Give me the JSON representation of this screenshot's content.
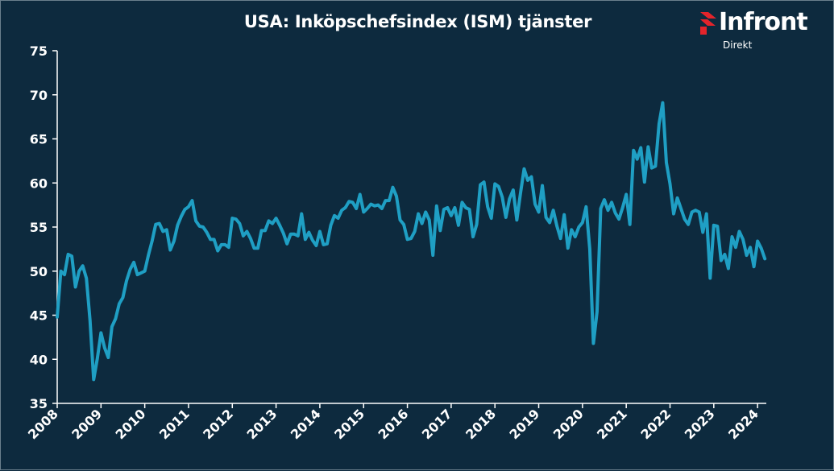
{
  "title": "USA: Inköpschefsindex (ISM) tjänster",
  "logo": {
    "word": "Infront",
    "sub": "Direkt"
  },
  "colors": {
    "background": "#0d2a3e",
    "line": "#1f9fc4",
    "axis": "#ffffff",
    "logo_accent": "#e3242b"
  },
  "chart_data": {
    "type": "line",
    "title": "USA: Inköpschefsindex (ISM) tjänster",
    "xlabel": "",
    "ylabel": "",
    "ylim": [
      35,
      75
    ],
    "yticks": [
      35,
      40,
      45,
      50,
      55,
      60,
      65,
      70,
      75
    ],
    "xlim": [
      2008.0,
      2024.2
    ],
    "xticks": [
      "2008",
      "2009",
      "2010",
      "2011",
      "2012",
      "2013",
      "2014",
      "2015",
      "2016",
      "2017",
      "2018",
      "2019",
      "2020",
      "2021",
      "2022",
      "2023",
      "2024"
    ],
    "grid": false,
    "legend": "none",
    "series": [
      {
        "x": [
          2008.0,
          2008.083,
          2008.167,
          2008.25,
          2008.333,
          2008.417,
          2008.5,
          2008.583,
          2008.667,
          2008.75,
          2008.833,
          2008.917,
          2009.0,
          2009.083,
          2009.167,
          2009.25,
          2009.333,
          2009.417,
          2009.5,
          2009.583,
          2009.667,
          2009.75,
          2009.833,
          2009.917,
          2010.0,
          2010.083,
          2010.167,
          2010.25,
          2010.333,
          2010.417,
          2010.5,
          2010.583,
          2010.667,
          2010.75,
          2010.833,
          2010.917,
          2011.0,
          2011.083,
          2011.167,
          2011.25,
          2011.333,
          2011.417,
          2011.5,
          2011.583,
          2011.667,
          2011.75,
          2011.833,
          2011.917,
          2012.0,
          2012.083,
          2012.167,
          2012.25,
          2012.333,
          2012.417,
          2012.5,
          2012.583,
          2012.667,
          2012.75,
          2012.833,
          2012.917,
          2013.0,
          2013.083,
          2013.167,
          2013.25,
          2013.333,
          2013.417,
          2013.5,
          2013.583,
          2013.667,
          2013.75,
          2013.833,
          2013.917,
          2014.0,
          2014.083,
          2014.167,
          2014.25,
          2014.333,
          2014.417,
          2014.5,
          2014.583,
          2014.667,
          2014.75,
          2014.833,
          2014.917,
          2015.0,
          2015.083,
          2015.167,
          2015.25,
          2015.333,
          2015.417,
          2015.5,
          2015.583,
          2015.667,
          2015.75,
          2015.833,
          2015.917,
          2016.0,
          2016.083,
          2016.167,
          2016.25,
          2016.333,
          2016.417,
          2016.5,
          2016.583,
          2016.667,
          2016.75,
          2016.833,
          2016.917,
          2017.0,
          2017.083,
          2017.167,
          2017.25,
          2017.333,
          2017.417,
          2017.5,
          2017.583,
          2017.667,
          2017.75,
          2017.833,
          2017.917,
          2018.0,
          2018.083,
          2018.167,
          2018.25,
          2018.333,
          2018.417,
          2018.5,
          2018.583,
          2018.667,
          2018.75,
          2018.833,
          2018.917,
          2019.0,
          2019.083,
          2019.167,
          2019.25,
          2019.333,
          2019.417,
          2019.5,
          2019.583,
          2019.667,
          2019.75,
          2019.833,
          2019.917,
          2020.0,
          2020.083,
          2020.167,
          2020.25,
          2020.333,
          2020.417,
          2020.5,
          2020.583,
          2020.667,
          2020.75,
          2020.833,
          2020.917,
          2021.0,
          2021.083,
          2021.167,
          2021.25,
          2021.333,
          2021.417,
          2021.5,
          2021.583,
          2021.667,
          2021.75,
          2021.833,
          2021.917,
          2022.0,
          2022.083,
          2022.167,
          2022.25,
          2022.333,
          2022.417,
          2022.5,
          2022.583,
          2022.667,
          2022.75,
          2022.833,
          2022.917,
          2023.0,
          2023.083,
          2023.167,
          2023.25,
          2023.333,
          2023.417,
          2023.5,
          2023.583,
          2023.667,
          2023.75,
          2023.833,
          2023.917,
          2024.0,
          2024.083,
          2024.167
        ],
        "values": [
          44.8,
          50.0,
          49.6,
          51.9,
          51.7,
          48.2,
          50.0,
          50.6,
          49.2,
          44.4,
          37.7,
          40.1,
          43.0,
          41.3,
          40.2,
          43.7,
          44.6,
          46.3,
          47.0,
          48.9,
          50.2,
          51.0,
          49.6,
          49.8,
          50.0,
          51.8,
          53.4,
          55.3,
          55.4,
          54.5,
          54.7,
          52.4,
          53.4,
          55.2,
          56.2,
          57.0,
          57.3,
          58.0,
          55.7,
          55.1,
          55.0,
          54.4,
          53.6,
          53.6,
          52.3,
          53.0,
          53.0,
          52.7,
          56.0,
          55.9,
          55.4,
          54.0,
          54.5,
          53.7,
          52.6,
          52.6,
          54.6,
          54.6,
          55.7,
          55.4,
          56.0,
          55.2,
          54.3,
          53.1,
          54.2,
          54.2,
          54.0,
          56.5,
          53.6,
          54.4,
          53.5,
          52.9,
          54.5,
          53.0,
          53.1,
          55.2,
          56.3,
          56.0,
          56.9,
          57.2,
          57.9,
          57.8,
          57.1,
          58.7,
          56.7,
          57.1,
          57.6,
          57.4,
          57.5,
          57.1,
          58.0,
          58.0,
          59.5,
          58.5,
          55.8,
          55.3,
          53.6,
          53.7,
          54.5,
          56.5,
          55.4,
          56.7,
          55.8,
          51.8,
          57.4,
          54.6,
          57.0,
          57.2,
          56.3,
          57.2,
          55.2,
          57.8,
          57.2,
          57.0,
          53.9,
          55.3,
          59.8,
          60.1,
          57.3,
          56.0,
          59.9,
          59.6,
          58.4,
          56.1,
          58.2,
          59.2,
          55.8,
          58.8,
          61.6,
          60.3,
          60.7,
          57.6,
          56.7,
          59.7,
          56.1,
          55.5,
          56.9,
          55.1,
          53.7,
          56.4,
          52.6,
          54.7,
          53.9,
          55.0,
          55.5,
          57.3,
          52.5,
          41.8,
          45.4,
          57.1,
          58.1,
          56.9,
          57.8,
          56.6,
          55.9,
          57.2,
          58.7,
          55.3,
          63.7,
          62.7,
          64.0,
          60.1,
          64.1,
          61.7,
          61.9,
          66.7,
          69.1,
          62.3,
          59.9,
          56.5,
          58.3,
          57.1,
          55.9,
          55.3,
          56.7,
          56.9,
          56.7,
          54.4,
          56.5,
          49.2,
          55.2,
          55.1,
          51.2,
          51.9,
          50.3,
          53.9,
          52.7,
          54.5,
          53.6,
          51.8,
          52.7,
          50.5,
          53.4,
          52.6,
          51.4
        ]
      }
    ]
  }
}
